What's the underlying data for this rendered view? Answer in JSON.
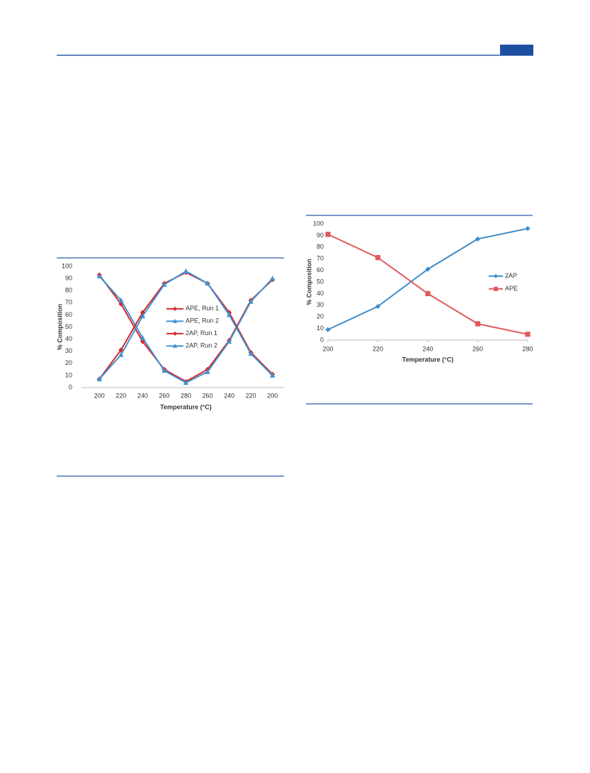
{
  "chart_data": [
    {
      "type": "line",
      "categories": [
        "200",
        "220",
        "240",
        "260",
        "280",
        "260",
        "240",
        "220",
        "200"
      ],
      "x_label": "Temperature (°C)",
      "y_label": "% Composition",
      "ylim": [
        0,
        100
      ],
      "yticks": [
        0,
        10,
        20,
        30,
        40,
        50,
        60,
        70,
        80,
        90,
        100
      ],
      "legend": "center",
      "series": [
        {
          "name": "APE, Run 1",
          "color": "#d9262a",
          "marker": "diamond",
          "values": [
            93,
            69,
            38,
            15,
            5,
            15,
            39,
            72,
            89
          ]
        },
        {
          "name": "APE, Run 2",
          "color": "#3f93d0",
          "marker": "triangle",
          "values": [
            92,
            72,
            41,
            14,
            4,
            13,
            38,
            71,
            90
          ]
        },
        {
          "name": "2AP, Run 1",
          "color": "#d9262a",
          "marker": "diamond",
          "values": [
            7,
            31,
            62,
            86,
            95,
            86,
            62,
            29,
            11
          ]
        },
        {
          "name": "2AP, Run 2",
          "color": "#3f93d0",
          "marker": "triangle",
          "values": [
            7,
            27,
            59,
            85,
            96,
            86,
            60,
            28,
            10
          ]
        }
      ]
    },
    {
      "type": "line",
      "x": [
        200,
        220,
        240,
        260,
        280
      ],
      "xlim": [
        200,
        280
      ],
      "xticks": [
        200,
        220,
        240,
        260,
        280
      ],
      "x_label": "Temperature (°C)",
      "y_label": "% Composition",
      "ylim": [
        0,
        100
      ],
      "yticks": [
        0,
        10,
        20,
        30,
        40,
        50,
        60,
        70,
        80,
        90,
        100
      ],
      "legend": "right",
      "series": [
        {
          "name": "2AP",
          "color": "#3a8ccb",
          "marker": "diamond",
          "values": [
            9,
            29,
            61,
            87,
            96
          ]
        },
        {
          "name": "APE",
          "color": "#e05a5a",
          "marker": "square",
          "values": [
            91,
            71,
            40,
            14,
            5
          ]
        }
      ]
    }
  ]
}
